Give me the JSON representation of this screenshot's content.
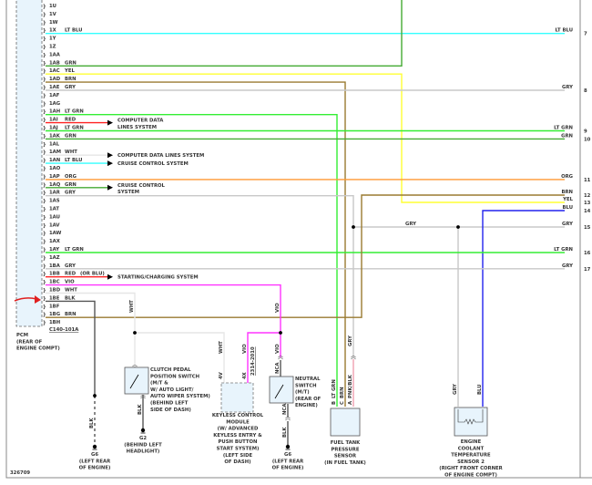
{
  "diagram_id": "326709",
  "colors": {
    "LT BLU": "#33ffff",
    "GRN": "#44aa33",
    "YEL": "#ffff33",
    "BRN": "#9a7a30",
    "GRY": "#c8c8c8",
    "LT GRN": "#33ee33",
    "RED": "#ff2222",
    "WHT": "#e6e6e6",
    "ORG": "#ff9933",
    "VIO": "#ff33ff",
    "BLK": "#555555",
    "BLU": "#2222ee",
    "PNK": "#f0a0b0",
    "NCA": "#555555",
    "callout_arrow": "#e02020",
    "component_fill": "#e8f4fc"
  },
  "pcm": {
    "title_lines": [
      "PCM",
      "(REAR OF",
      "ENGINE COMPT)"
    ],
    "connector_id": "C140-101A",
    "pins": [
      {
        "pin": "1U",
        "color": ""
      },
      {
        "pin": "1V",
        "color": ""
      },
      {
        "pin": "1W",
        "color": ""
      },
      {
        "pin": "1X",
        "color": "LT BLU"
      },
      {
        "pin": "1Y",
        "color": ""
      },
      {
        "pin": "1Z",
        "color": ""
      },
      {
        "pin": "1AA",
        "color": ""
      },
      {
        "pin": "1AB",
        "color": "GRN"
      },
      {
        "pin": "1AC",
        "color": "YEL"
      },
      {
        "pin": "1AD",
        "color": "BRN"
      },
      {
        "pin": "1AE",
        "color": "GRY"
      },
      {
        "pin": "1AF",
        "color": ""
      },
      {
        "pin": "1AG",
        "color": ""
      },
      {
        "pin": "1AH",
        "color": "LT GRN"
      },
      {
        "pin": "1AI",
        "color": "RED"
      },
      {
        "pin": "1AJ",
        "color": "LT GRN"
      },
      {
        "pin": "1AK",
        "color": "GRN"
      },
      {
        "pin": "1AL",
        "color": ""
      },
      {
        "pin": "1AM",
        "color": "WHT"
      },
      {
        "pin": "1AN",
        "color": "LT BLU"
      },
      {
        "pin": "1AO",
        "color": ""
      },
      {
        "pin": "1AP",
        "color": "ORG"
      },
      {
        "pin": "1AQ",
        "color": "GRN"
      },
      {
        "pin": "1AR",
        "color": "GRY"
      },
      {
        "pin": "1AS",
        "color": ""
      },
      {
        "pin": "1AT",
        "color": ""
      },
      {
        "pin": "1AU",
        "color": ""
      },
      {
        "pin": "1AV",
        "color": ""
      },
      {
        "pin": "1AW",
        "color": ""
      },
      {
        "pin": "1AX",
        "color": ""
      },
      {
        "pin": "1AY",
        "color": "LT GRN"
      },
      {
        "pin": "1AZ",
        "color": ""
      },
      {
        "pin": "1BA",
        "color": "GRY"
      },
      {
        "pin": "1BB",
        "color": "RED"
      },
      {
        "pin": "1BC",
        "color": "VIO"
      },
      {
        "pin": "1BD",
        "color": "WHT"
      },
      {
        "pin": "1BE",
        "color": "BLK"
      },
      {
        "pin": "1BF",
        "color": ""
      },
      {
        "pin": "1BG",
        "color": "BRN"
      },
      {
        "pin": "1BH",
        "color": ""
      }
    ],
    "alt_color_note": "(OR BLU)"
  },
  "system_arrows": [
    {
      "pin": "1AI",
      "lines": [
        "COMPUTER DATA",
        "LINES SYSTEM"
      ]
    },
    {
      "pin": "1AM",
      "lines": [
        "COMPUTER DATA LINES SYSTEM"
      ]
    },
    {
      "pin": "1AN",
      "lines": [
        "CRUISE CONTROL SYSTEM"
      ]
    },
    {
      "pin": "1AQ",
      "lines": [
        "CRUISE CONTROL",
        "SYSTEM"
      ]
    },
    {
      "pin": "1BB",
      "lines": [
        "STARTING/CHARGING SYSTEM"
      ]
    }
  ],
  "right_terminals": [
    {
      "number": "7",
      "color": "LT BLU"
    },
    {
      "number": "8",
      "color": "GRY"
    },
    {
      "number": "9",
      "color": "LT GRN"
    },
    {
      "number": "10",
      "color": "GRN"
    },
    {
      "number": "11",
      "color": "ORG"
    },
    {
      "number": "12",
      "color": "BRN"
    },
    {
      "number": "13",
      "color": "YEL"
    },
    {
      "number": "14",
      "color": "BLU"
    },
    {
      "number": "15",
      "color": "GRY"
    },
    {
      "number": "16",
      "color": "LT GRN"
    },
    {
      "number": "17",
      "color": "GRY"
    }
  ],
  "mid_wire_label": "GRY",
  "wire_labels": {
    "wht_clutch": "WHT",
    "blk_clutch": "BLK",
    "wht_keyless": "WHT",
    "vio_keyless": "VIO",
    "keyless_pin_v": "4V",
    "keyless_pin_x": "4X",
    "keyless_ref": "2314-2010",
    "vio_upper": "VIO",
    "vio_neutral": "VIO",
    "nca_top": "NCA",
    "nca_bottom": "NCA",
    "blk_neutral": "BLK",
    "blk_g6_left": "BLK",
    "gry_fuel": "GRY",
    "fuel_b": "B",
    "fuel_b_color": "LT GRN",
    "fuel_c": "C",
    "fuel_c_color": "BRN",
    "fuel_a": "A",
    "fuel_a_color": "PNK/BLK",
    "ect_gry": "GRY",
    "ect_blu": "BLU"
  },
  "components": {
    "clutch_switch": [
      "CLUTCH PEDAL",
      "POSITION SWITCH",
      "(M/T &",
      "W/ AUTO LIGHT/",
      "AUTO WIPER SYSTEM)",
      "(BEHIND LEFT",
      "SIDE OF DASH)"
    ],
    "keyless_module": [
      "KEYLESS CONTROL",
      "MODULE",
      "(W/ ADVANCED",
      "KEYLESS ENTRY &",
      "PUSH BUTTON",
      "START SYSTEM)",
      "(LEFT SIDE",
      "OF DASH)"
    ],
    "neutral_switch": [
      "NEUTRAL",
      "SWITCH",
      "(M/T)",
      "(REAR OF",
      "ENGINE)"
    ],
    "fuel_tank_sensor": [
      "FUEL TANK",
      "PRESSURE",
      "SENSOR",
      "(IN FUEL TANK)"
    ],
    "ect_sensor": [
      "ENGINE",
      "COOLANT",
      "TEMPERATURE",
      "SENSOR 2",
      "(RIGHT FRONT CORNER",
      "OF ENGINE COMPT)"
    ],
    "ground_g6_left": [
      "G6",
      "(LEFT REAR",
      "OF ENGINE)"
    ],
    "ground_g2": [
      "G2",
      "(BEHIND LEFT",
      "HEADLIGHT)"
    ],
    "ground_g6_right": [
      "G6",
      "(LEFT REAR",
      "OF ENGINE)"
    ]
  }
}
